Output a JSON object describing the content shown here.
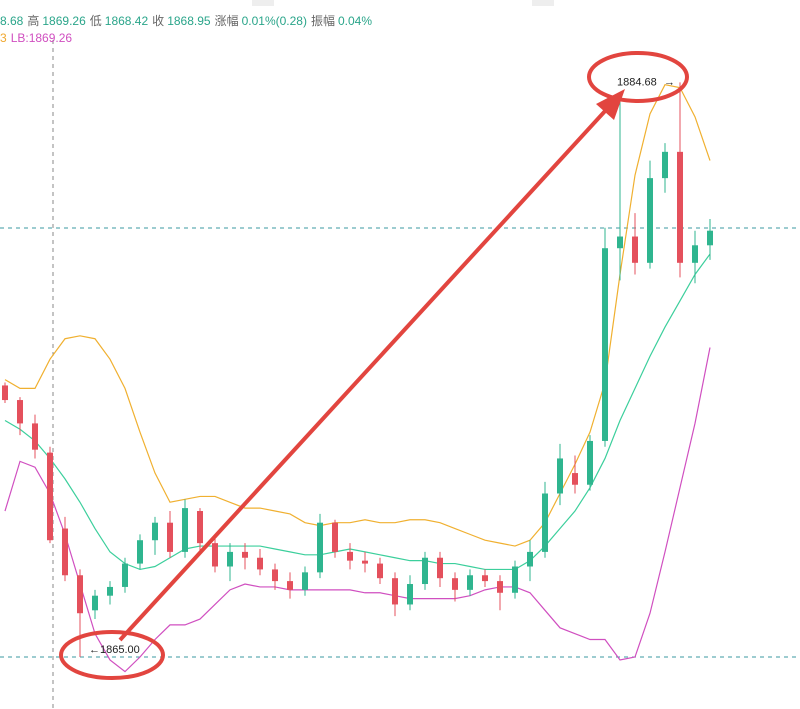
{
  "header": [
    {
      "value": "8.68"
    },
    {
      "label": "高",
      "value": "1869.26"
    },
    {
      "label": "低",
      "value": "1868.42"
    },
    {
      "label": "收",
      "value": "1868.95"
    },
    {
      "label": "涨幅",
      "value": "0.01%(0.28)"
    },
    {
      "label": "振幅",
      "value": "0.04%"
    }
  ],
  "legend": [
    {
      "text": "3",
      "color": "#f0a830"
    },
    {
      "text": "LB:1869.26",
      "color": "#d04fc0"
    }
  ],
  "chart_data": {
    "type": "candlestick",
    "ylim": [
      1863.22,
      1887.5
    ],
    "up_color": "#2fb58f",
    "down_color": "#e4505c",
    "candles": {
      "open": [
        1874.3,
        1873.8,
        1873.0,
        1872.0,
        1869.4,
        1867.8,
        1866.6,
        1867.1,
        1867.4,
        1868.2,
        1869.0,
        1869.6,
        1868.6,
        1870.0,
        1868.9,
        1868.1,
        1868.6,
        1868.4,
        1868.0,
        1867.6,
        1867.3,
        1867.9,
        1869.6,
        1868.6,
        1868.3,
        1868.2,
        1867.7,
        1866.8,
        1867.5,
        1868.4,
        1867.7,
        1867.3,
        1867.8,
        1867.6,
        1867.2,
        1868.1,
        1868.6,
        1870.6,
        1871.3,
        1870.9,
        1872.4,
        1879.0,
        1879.4,
        1878.5,
        1881.4,
        1882.3,
        1878.5,
        1879.1
      ],
      "high": [
        1874.4,
        1873.9,
        1873.3,
        1872.2,
        1869.8,
        1868.0,
        1867.3,
        1867.6,
        1868.4,
        1869.2,
        1869.8,
        1870.0,
        1870.4,
        1870.1,
        1869.1,
        1868.9,
        1868.9,
        1868.7,
        1868.2,
        1867.9,
        1868.1,
        1869.9,
        1869.7,
        1868.9,
        1868.6,
        1868.4,
        1867.9,
        1867.8,
        1868.6,
        1868.6,
        1867.9,
        1868.0,
        1868.0,
        1867.8,
        1868.3,
        1869.0,
        1871.0,
        1872.3,
        1871.9,
        1872.6,
        1879.7,
        1884.2,
        1880.2,
        1882.0,
        1882.6,
        1884.68,
        1879.6,
        1880.0
      ],
      "low": [
        1873.7,
        1872.6,
        1871.8,
        1868.9,
        1867.6,
        1865.0,
        1866.3,
        1866.8,
        1867.2,
        1868.0,
        1868.5,
        1868.4,
        1868.4,
        1868.6,
        1867.9,
        1867.6,
        1868.0,
        1867.8,
        1867.3,
        1867.0,
        1867.1,
        1867.7,
        1868.4,
        1868.0,
        1867.9,
        1867.5,
        1866.4,
        1866.6,
        1867.3,
        1867.4,
        1866.9,
        1867.1,
        1867.4,
        1866.6,
        1867.0,
        1867.6,
        1868.4,
        1870.2,
        1870.6,
        1870.7,
        1872.2,
        1877.9,
        1878.1,
        1878.3,
        1880.9,
        1878.0,
        1877.8,
        1878.6
      ],
      "close": [
        1873.8,
        1873.0,
        1872.1,
        1869.0,
        1867.8,
        1866.5,
        1867.1,
        1867.4,
        1868.2,
        1869.0,
        1869.6,
        1868.6,
        1870.1,
        1868.9,
        1868.1,
        1868.6,
        1868.4,
        1868.0,
        1867.6,
        1867.3,
        1867.9,
        1869.6,
        1868.6,
        1868.3,
        1868.2,
        1867.7,
        1866.8,
        1867.5,
        1868.4,
        1867.7,
        1867.3,
        1867.8,
        1867.6,
        1867.2,
        1868.1,
        1868.6,
        1870.6,
        1871.8,
        1870.9,
        1872.4,
        1879.0,
        1879.4,
        1878.5,
        1881.4,
        1882.3,
        1878.5,
        1879.1,
        1879.6
      ]
    },
    "lines": [
      {
        "color": "#f0b030",
        "values": [
          1874.5,
          1874.2,
          1874.2,
          1875.2,
          1875.9,
          1876.0,
          1875.9,
          1875.2,
          1874.2,
          1872.7,
          1871.3,
          1870.3,
          1870.4,
          1870.5,
          1870.5,
          1870.3,
          1870.1,
          1870.1,
          1870.0,
          1869.9,
          1869.6,
          1869.5,
          1869.6,
          1869.6,
          1869.7,
          1869.6,
          1869.6,
          1869.7,
          1869.7,
          1869.6,
          1869.4,
          1869.2,
          1869.0,
          1868.9,
          1868.8,
          1869.0,
          1869.6,
          1870.6,
          1871.6,
          1872.7,
          1874.4,
          1878.1,
          1881.5,
          1883.6,
          1884.6,
          1884.5,
          1883.5,
          1882.0
        ]
      },
      {
        "color": "#3ccf9c",
        "values": [
          1873.1,
          1872.8,
          1872.4,
          1871.8,
          1871.1,
          1870.3,
          1869.4,
          1868.6,
          1868.2,
          1868.0,
          1868.1,
          1868.4,
          1868.7,
          1868.8,
          1868.8,
          1868.8,
          1868.8,
          1868.8,
          1868.7,
          1868.6,
          1868.5,
          1868.5,
          1868.6,
          1868.7,
          1868.6,
          1868.5,
          1868.4,
          1868.3,
          1868.3,
          1868.2,
          1868.2,
          1868.1,
          1868.0,
          1868.0,
          1868.0,
          1868.3,
          1868.8,
          1869.4,
          1870.0,
          1870.8,
          1871.8,
          1873.1,
          1874.2,
          1875.3,
          1876.3,
          1877.2,
          1878.1,
          1878.8
        ]
      },
      {
        "color": "#d04fc0",
        "values": [
          1870.0,
          1871.7,
          1871.5,
          1870.6,
          1869.2,
          1867.5,
          1865.8,
          1864.9,
          1864.5,
          1865.0,
          1865.6,
          1866.1,
          1866.1,
          1866.3,
          1866.8,
          1867.3,
          1867.5,
          1867.4,
          1867.4,
          1867.3,
          1867.3,
          1867.3,
          1867.3,
          1867.3,
          1867.2,
          1867.2,
          1867.1,
          1867.0,
          1867.0,
          1867.0,
          1867.0,
          1867.1,
          1867.3,
          1867.4,
          1867.4,
          1867.2,
          1866.6,
          1866.0,
          1865.8,
          1865.6,
          1865.6,
          1864.9,
          1865.0,
          1866.5,
          1868.6,
          1870.8,
          1873.0,
          1875.6
        ]
      }
    ],
    "hlines": [
      1879.69,
      1865.0
    ],
    "annotations": [
      {
        "value": 1884.68,
        "label": "1884.68"
      },
      {
        "value": 1865.0,
        "label": "1865.00"
      }
    ]
  }
}
